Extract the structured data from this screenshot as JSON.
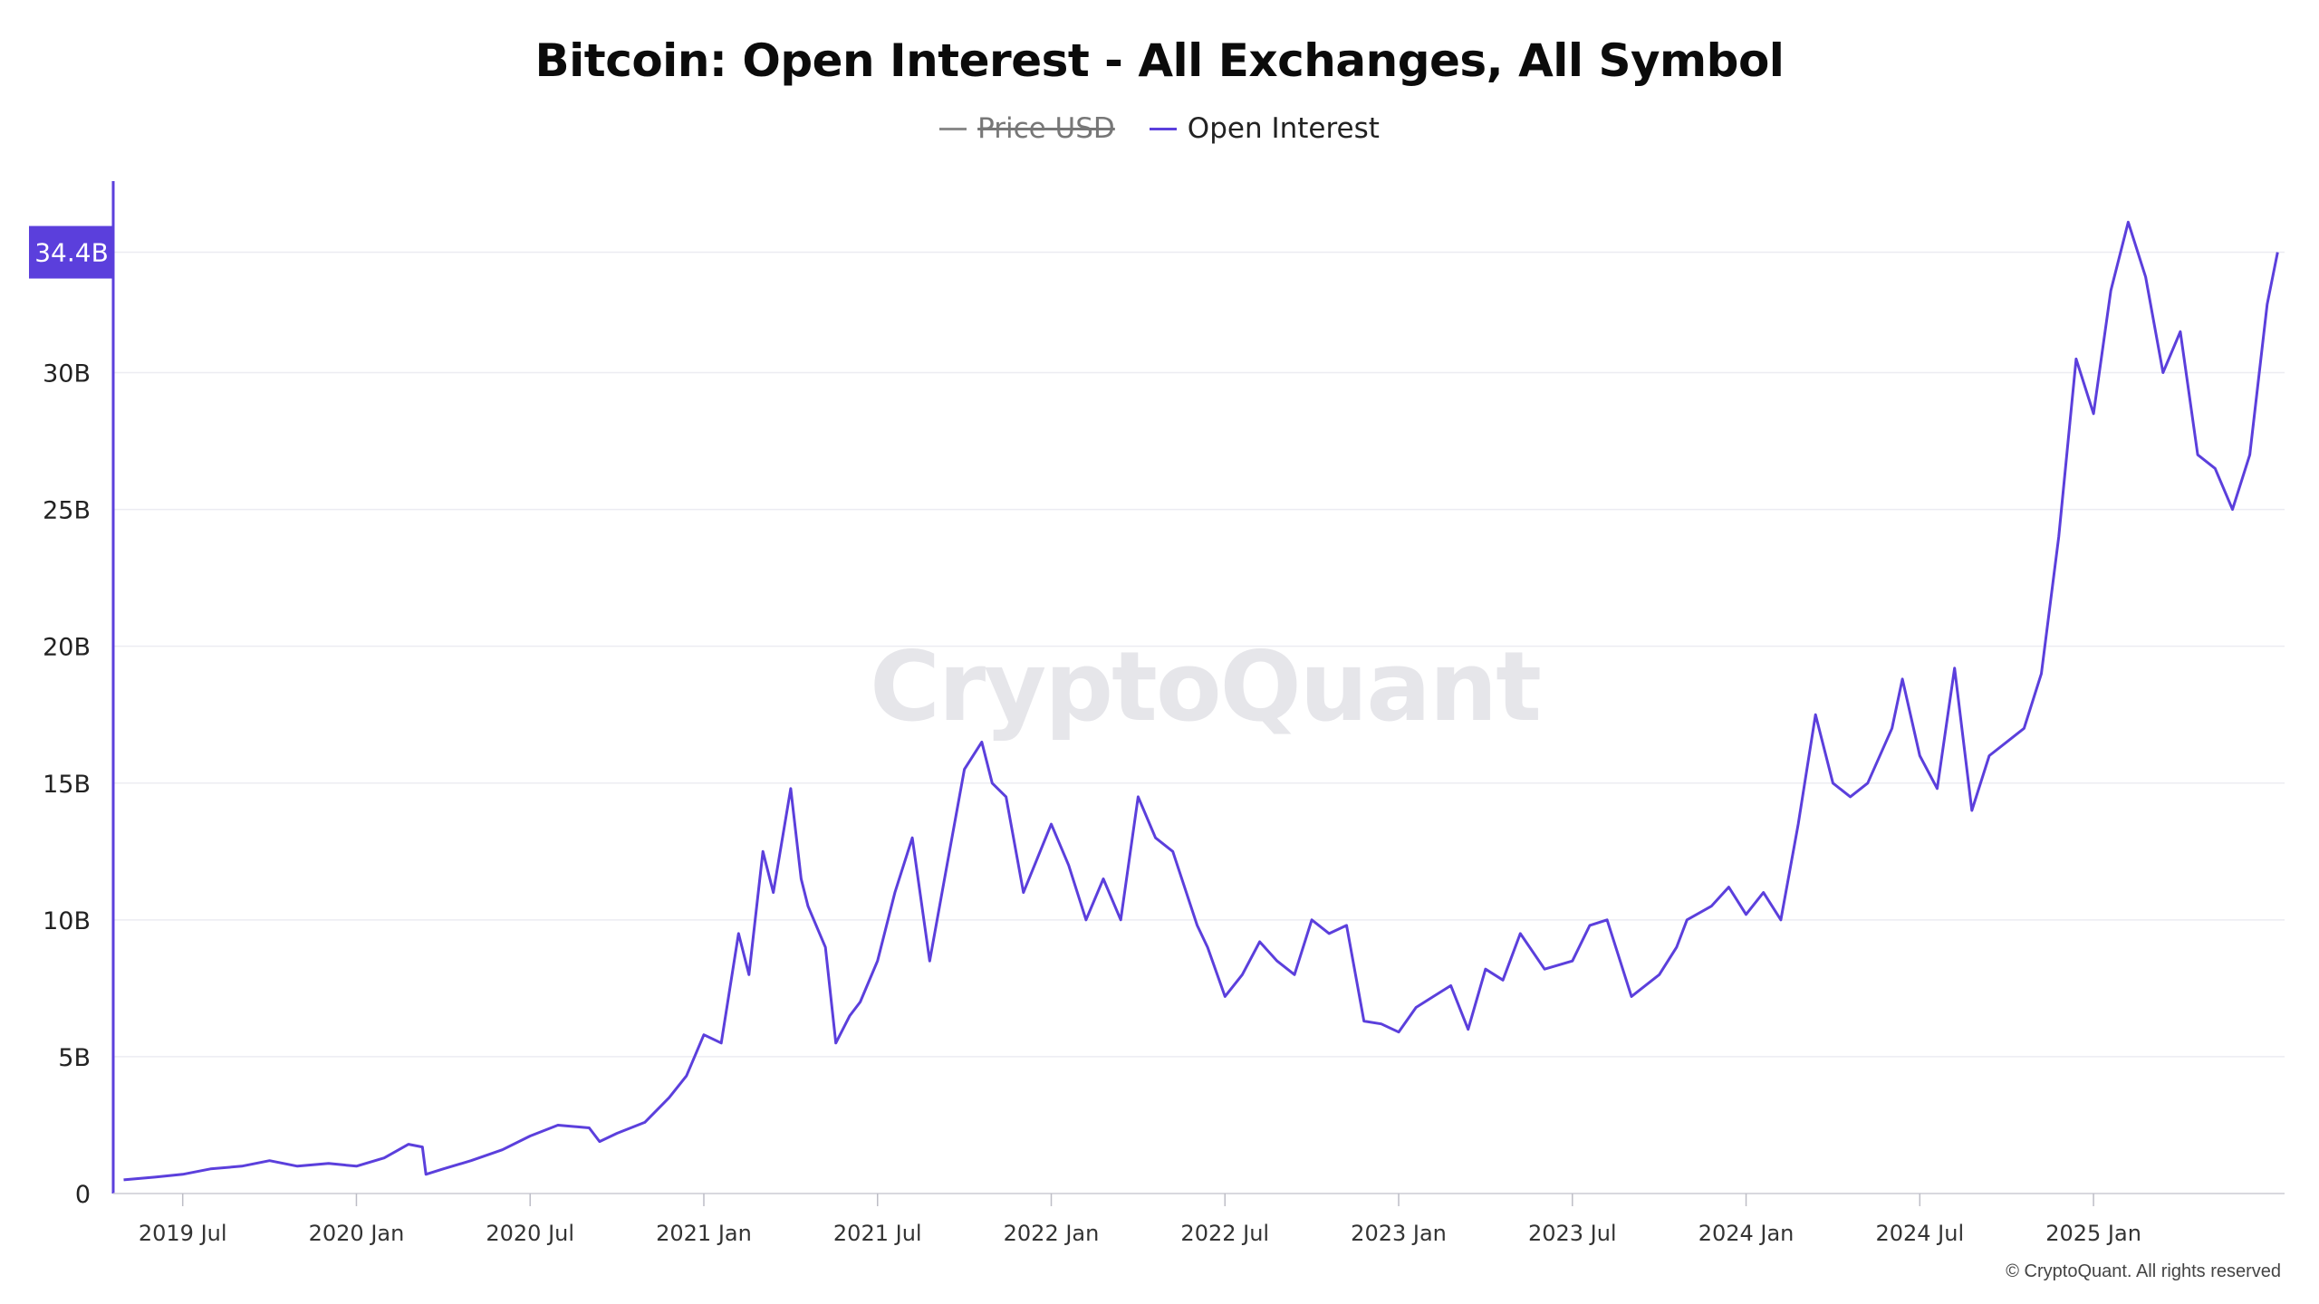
{
  "header": {
    "title": "Bitcoin: Open Interest - All Exchanges, All Symbol"
  },
  "legend": [
    {
      "label": "Price USD",
      "color": "#8a8a8a",
      "enabled": false
    },
    {
      "label": "Open Interest",
      "color": "#5b3fdc",
      "enabled": true
    }
  ],
  "watermark": "CryptoQuant",
  "footer": {
    "copyright": "© CryptoQuant. All rights reserved"
  },
  "chart_data": {
    "type": "line",
    "title": "Bitcoin: Open Interest - All Exchanges, All Symbol",
    "xlabel": "",
    "ylabel": "",
    "ylim": [
      0,
      37000000000
    ],
    "yticks": [
      0,
      5000000000,
      10000000000,
      15000000000,
      20000000000,
      25000000000,
      30000000000
    ],
    "ytick_labels": [
      "0",
      "5B",
      "10B",
      "15B",
      "20B",
      "25B",
      "30B"
    ],
    "xlim": [
      2019.3,
      2025.55
    ],
    "xticks": [
      2019.5,
      2020.0,
      2020.5,
      2021.0,
      2021.5,
      2022.0,
      2022.5,
      2023.0,
      2023.5,
      2024.0,
      2024.5,
      2025.0
    ],
    "xtick_labels": [
      "2019 Jul",
      "2020 Jan",
      "2020 Jul",
      "2021 Jan",
      "2021 Jul",
      "2022 Jan",
      "2022 Jul",
      "2023 Jan",
      "2023 Jul",
      "2024 Jan",
      "2024 Jul",
      "2025 Jan"
    ],
    "grid": true,
    "legend_position": "top-center",
    "current_value_label": "34.4B",
    "current_value": 34400000000,
    "series": [
      {
        "name": "Open Interest",
        "color": "#5b3fdc",
        "x": [
          2019.33,
          2019.42,
          2019.5,
          2019.58,
          2019.67,
          2019.75,
          2019.83,
          2019.92,
          2020.0,
          2020.08,
          2020.15,
          2020.19,
          2020.2,
          2020.25,
          2020.33,
          2020.42,
          2020.5,
          2020.58,
          2020.67,
          2020.7,
          2020.75,
          2020.83,
          2020.9,
          2020.95,
          2021.0,
          2021.05,
          2021.1,
          2021.13,
          2021.17,
          2021.2,
          2021.25,
          2021.28,
          2021.3,
          2021.35,
          2021.38,
          2021.42,
          2021.45,
          2021.5,
          2021.55,
          2021.6,
          2021.65,
          2021.7,
          2021.75,
          2021.8,
          2021.83,
          2021.87,
          2021.92,
          2022.0,
          2022.05,
          2022.1,
          2022.15,
          2022.2,
          2022.25,
          2022.3,
          2022.35,
          2022.42,
          2022.45,
          2022.5,
          2022.55,
          2022.6,
          2022.65,
          2022.7,
          2022.75,
          2022.8,
          2022.85,
          2022.9,
          2022.95,
          2023.0,
          2023.05,
          2023.1,
          2023.15,
          2023.2,
          2023.25,
          2023.3,
          2023.35,
          2023.42,
          2023.5,
          2023.55,
          2023.6,
          2023.67,
          2023.75,
          2023.8,
          2023.83,
          2023.9,
          2023.95,
          2024.0,
          2024.05,
          2024.1,
          2024.15,
          2024.2,
          2024.25,
          2024.3,
          2024.35,
          2024.42,
          2024.45,
          2024.5,
          2024.55,
          2024.6,
          2024.65,
          2024.7,
          2024.75,
          2024.8,
          2024.85,
          2024.9,
          2024.95,
          2025.0,
          2025.05,
          2025.1,
          2025.15,
          2025.2,
          2025.25,
          2025.3,
          2025.35,
          2025.4,
          2025.45,
          2025.5,
          2025.53
        ],
        "values": [
          500000000,
          600000000,
          700000000,
          900000000,
          1000000000,
          1200000000,
          1000000000,
          1100000000,
          1000000000,
          1300000000,
          1800000000,
          1700000000,
          700000000,
          900000000,
          1200000000,
          1600000000,
          2100000000,
          2500000000,
          2400000000,
          1900000000,
          2200000000,
          2600000000,
          3500000000,
          4300000000,
          5800000000,
          5500000000,
          9500000000,
          8000000000,
          12500000000,
          11000000000,
          14800000000,
          11500000000,
          10500000000,
          9000000000,
          5500000000,
          6500000000,
          7000000000,
          8500000000,
          11000000000,
          13000000000,
          8500000000,
          12000000000,
          15500000000,
          16500000000,
          15000000000,
          14500000000,
          11000000000,
          13500000000,
          12000000000,
          10000000000,
          11500000000,
          10000000000,
          14500000000,
          13000000000,
          12500000000,
          9800000000,
          9000000000,
          7200000000,
          8000000000,
          9200000000,
          8500000000,
          8000000000,
          10000000000,
          9500000000,
          9800000000,
          6300000000,
          6200000000,
          5900000000,
          6800000000,
          7200000000,
          7600000000,
          6000000000,
          8200000000,
          7800000000,
          9500000000,
          8200000000,
          8500000000,
          9800000000,
          10000000000,
          7200000000,
          8000000000,
          9000000000,
          10000000000,
          10500000000,
          11200000000,
          10200000000,
          11000000000,
          10000000000,
          13500000000,
          17500000000,
          15000000000,
          14500000000,
          15000000000,
          17000000000,
          18800000000,
          16000000000,
          14800000000,
          19200000000,
          14000000000,
          16000000000,
          16500000000,
          17000000000,
          19000000000,
          24000000000,
          30500000000,
          28500000000,
          33000000000,
          35500000000,
          33500000000,
          30000000000,
          31500000000,
          27000000000,
          26500000000,
          25000000000,
          27000000000,
          32500000000,
          34400000000
        ]
      }
    ]
  }
}
